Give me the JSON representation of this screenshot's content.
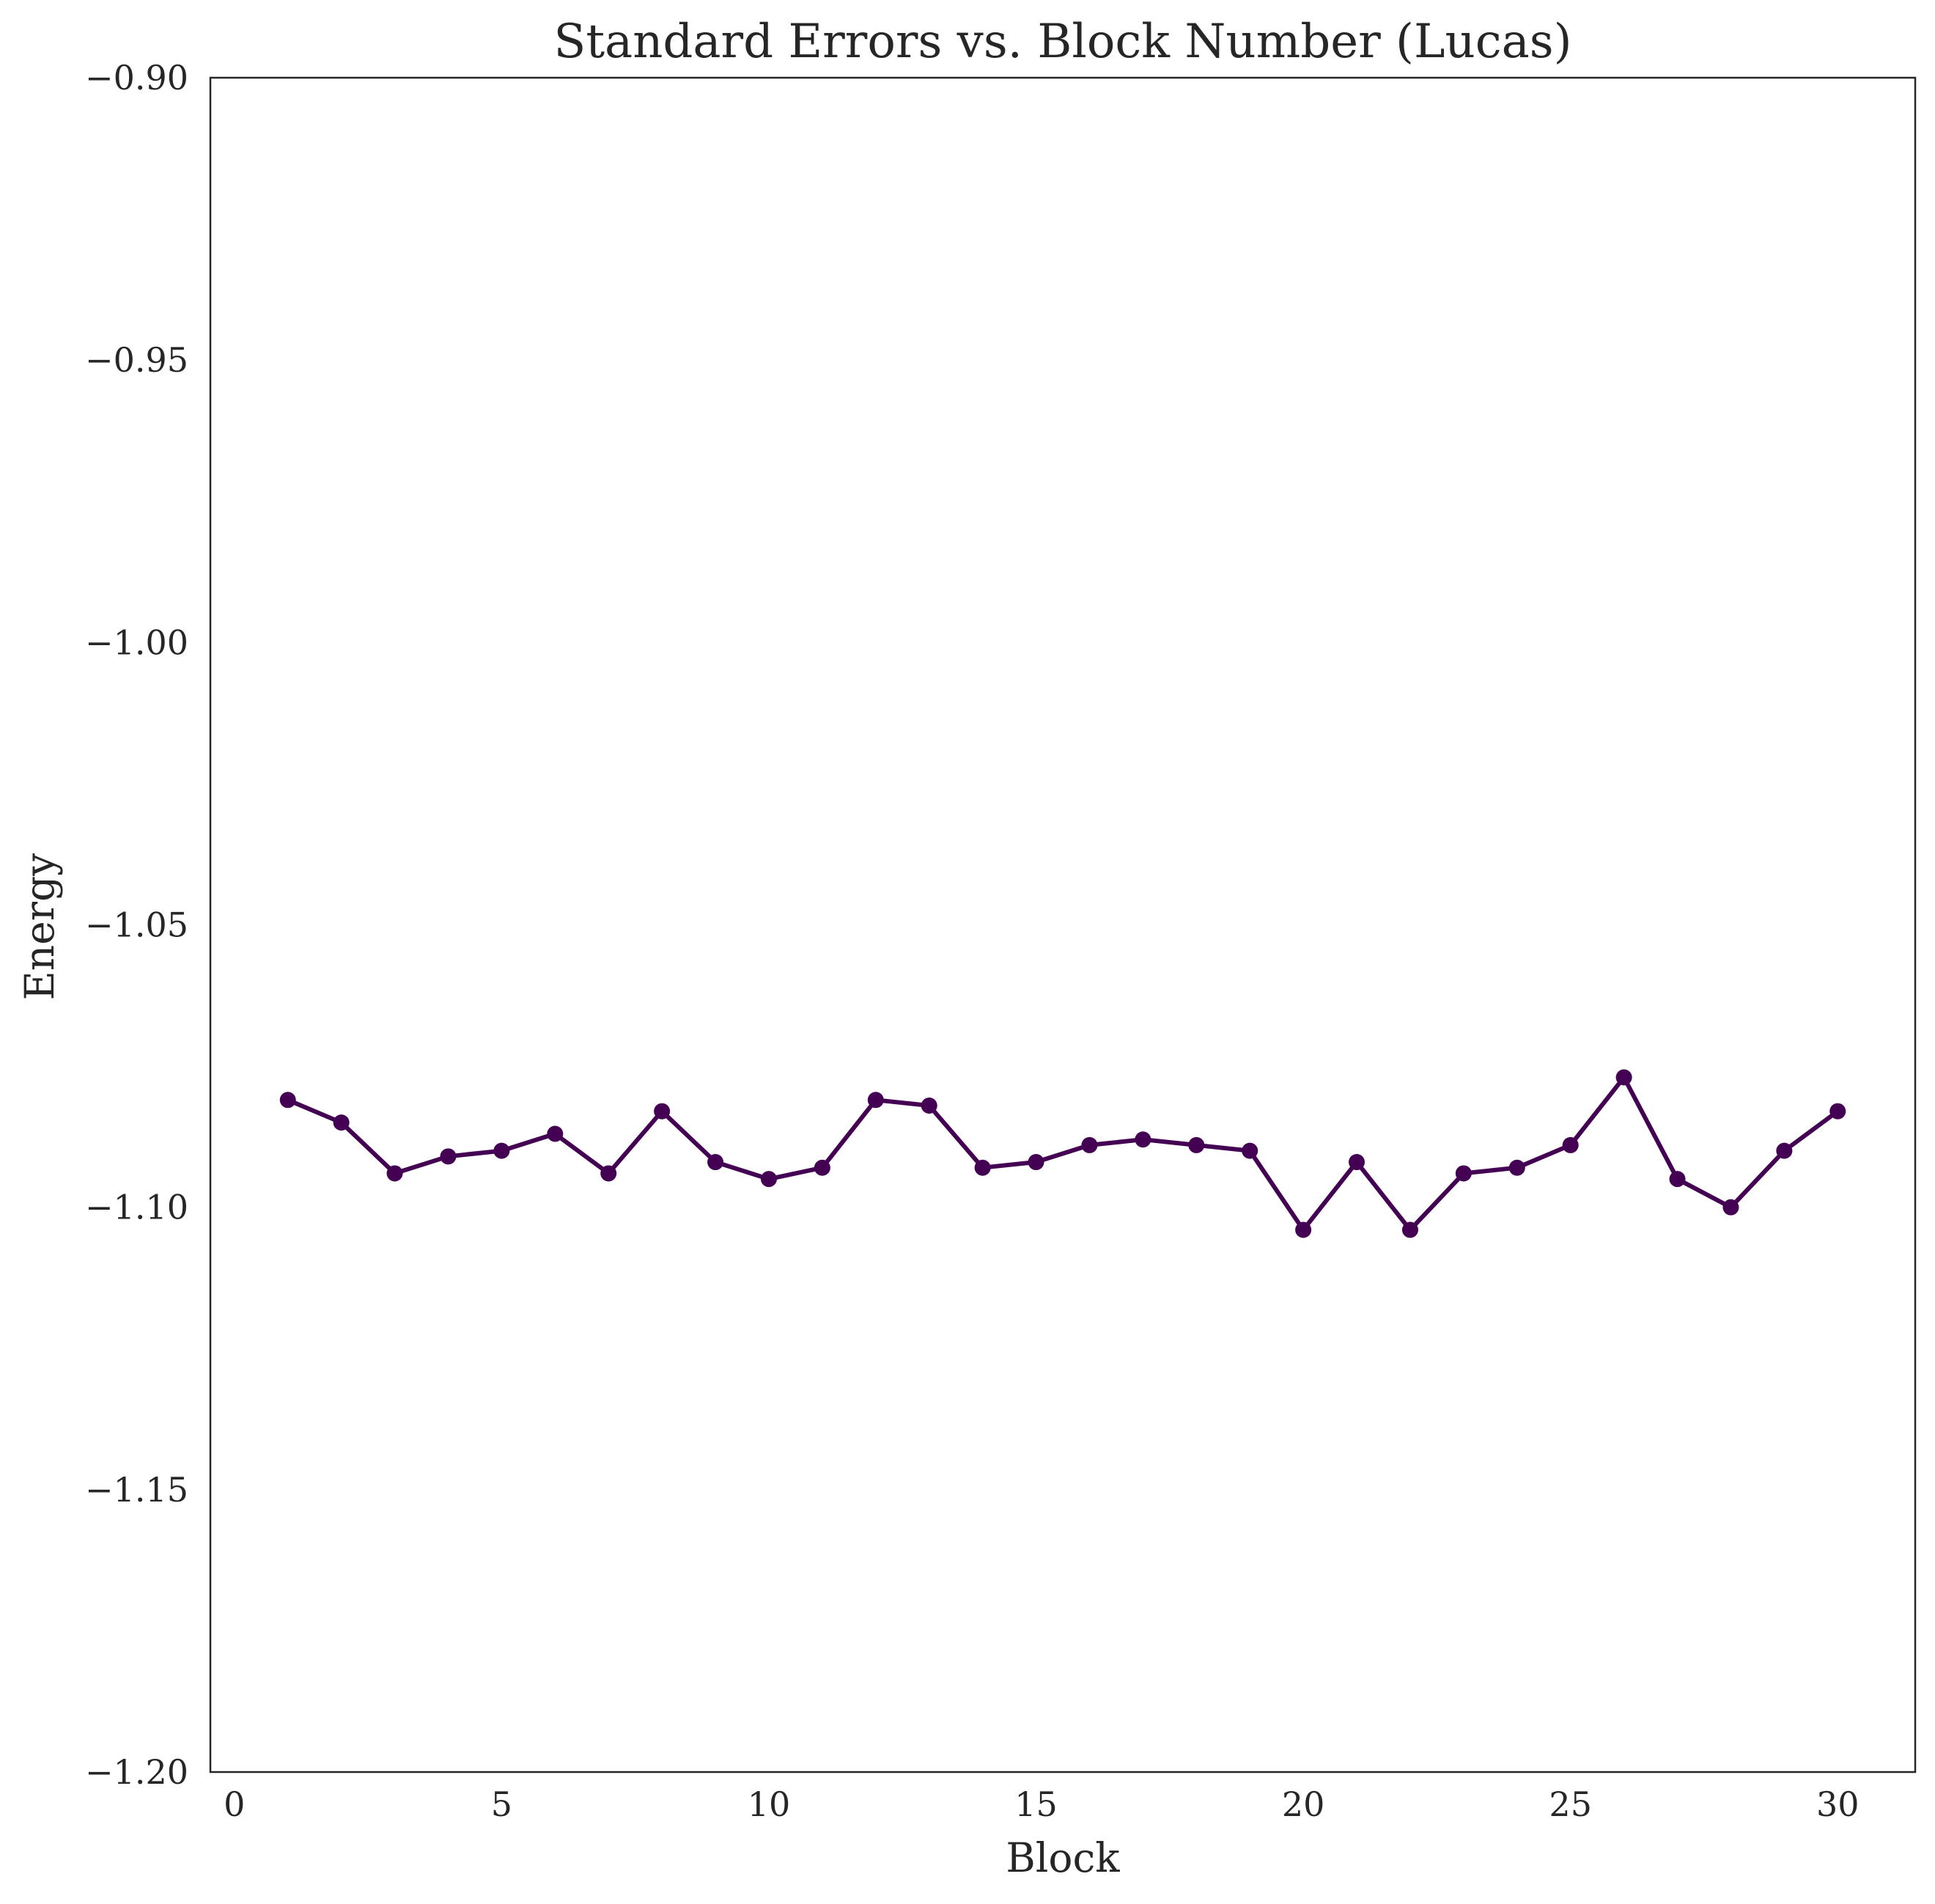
{
  "chart_data": {
    "type": "line",
    "title": "Standard Errors vs. Block Number (Lucas)",
    "xlabel": "Block",
    "ylabel": "Energy",
    "xlim": [
      -0.45,
      31.45
    ],
    "ylim": [
      -1.2,
      -0.9
    ],
    "xticks": [
      0,
      5,
      10,
      15,
      20,
      25,
      30
    ],
    "xtick_labels": [
      "0",
      "5",
      "10",
      "15",
      "20",
      "25",
      "30"
    ],
    "yticks": [
      -0.9,
      -0.95,
      -1.0,
      -1.05,
      -1.1,
      -1.15,
      -1.2
    ],
    "ytick_labels": [
      "−0.90",
      "−0.95",
      "−1.00",
      "−1.05",
      "−1.10",
      "−1.15",
      "−1.20"
    ],
    "grid": false,
    "legend": false,
    "color": "#440154",
    "marker": "circle",
    "series": [
      {
        "x": [
          1,
          2,
          3,
          4,
          5,
          6,
          7,
          8,
          9,
          10,
          11,
          12,
          13,
          14,
          15,
          16,
          17,
          18,
          19,
          20,
          21,
          22,
          23,
          24,
          25,
          26,
          27,
          28,
          29,
          30
        ],
        "values": [
          -1.081,
          -1.085,
          -1.094,
          -1.091,
          -1.09,
          -1.087,
          -1.094,
          -1.083,
          -1.092,
          -1.095,
          -1.093,
          -1.081,
          -1.082,
          -1.093,
          -1.092,
          -1.089,
          -1.088,
          -1.089,
          -1.09,
          -1.104,
          -1.092,
          -1.104,
          -1.094,
          -1.093,
          -1.089,
          -1.077,
          -1.095,
          -1.1,
          -1.09,
          -1.083
        ]
      }
    ]
  }
}
